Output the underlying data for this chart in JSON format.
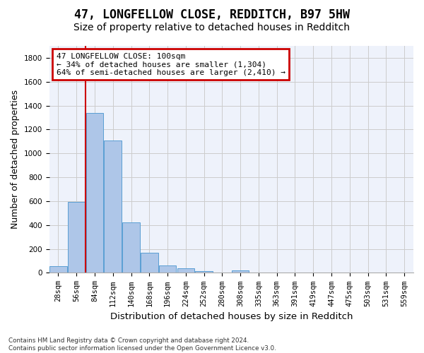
{
  "title": "47, LONGFELLOW CLOSE, REDDITCH, B97 5HW",
  "subtitle": "Size of property relative to detached houses in Redditch",
  "xlabel": "Distribution of detached houses by size in Redditch",
  "ylabel": "Number of detached properties",
  "bar_values": [
    55,
    595,
    1340,
    1110,
    425,
    170,
    60,
    40,
    15,
    0,
    20,
    0,
    0,
    0,
    0,
    0,
    0,
    0,
    0,
    0
  ],
  "bin_labels": [
    "28sqm",
    "56sqm",
    "84sqm",
    "112sqm",
    "140sqm",
    "168sqm",
    "196sqm",
    "224sqm",
    "252sqm",
    "280sqm",
    "308sqm",
    "335sqm",
    "363sqm",
    "391sqm",
    "419sqm",
    "447sqm",
    "475sqm",
    "503sqm",
    "531sqm",
    "559sqm"
  ],
  "bar_color": "#aec6e8",
  "bar_edge_color": "#5a9fd4",
  "grid_color": "#cccccc",
  "bg_color": "#eef2fb",
  "marker_color": "#cc0000",
  "annotation_text": "47 LONGFELLOW CLOSE: 100sqm\n← 34% of detached houses are smaller (1,304)\n64% of semi-detached houses are larger (2,410) →",
  "annotation_box_color": "#cc0000",
  "ylim": [
    0,
    1900
  ],
  "yticks": [
    0,
    200,
    400,
    600,
    800,
    1000,
    1200,
    1400,
    1600,
    1800
  ],
  "footnote": "Contains HM Land Registry data © Crown copyright and database right 2024.\nContains public sector information licensed under the Open Government Licence v3.0.",
  "title_fontsize": 12,
  "subtitle_fontsize": 10,
  "xlabel_fontsize": 9.5,
  "ylabel_fontsize": 9,
  "tick_fontsize": 7.5
}
